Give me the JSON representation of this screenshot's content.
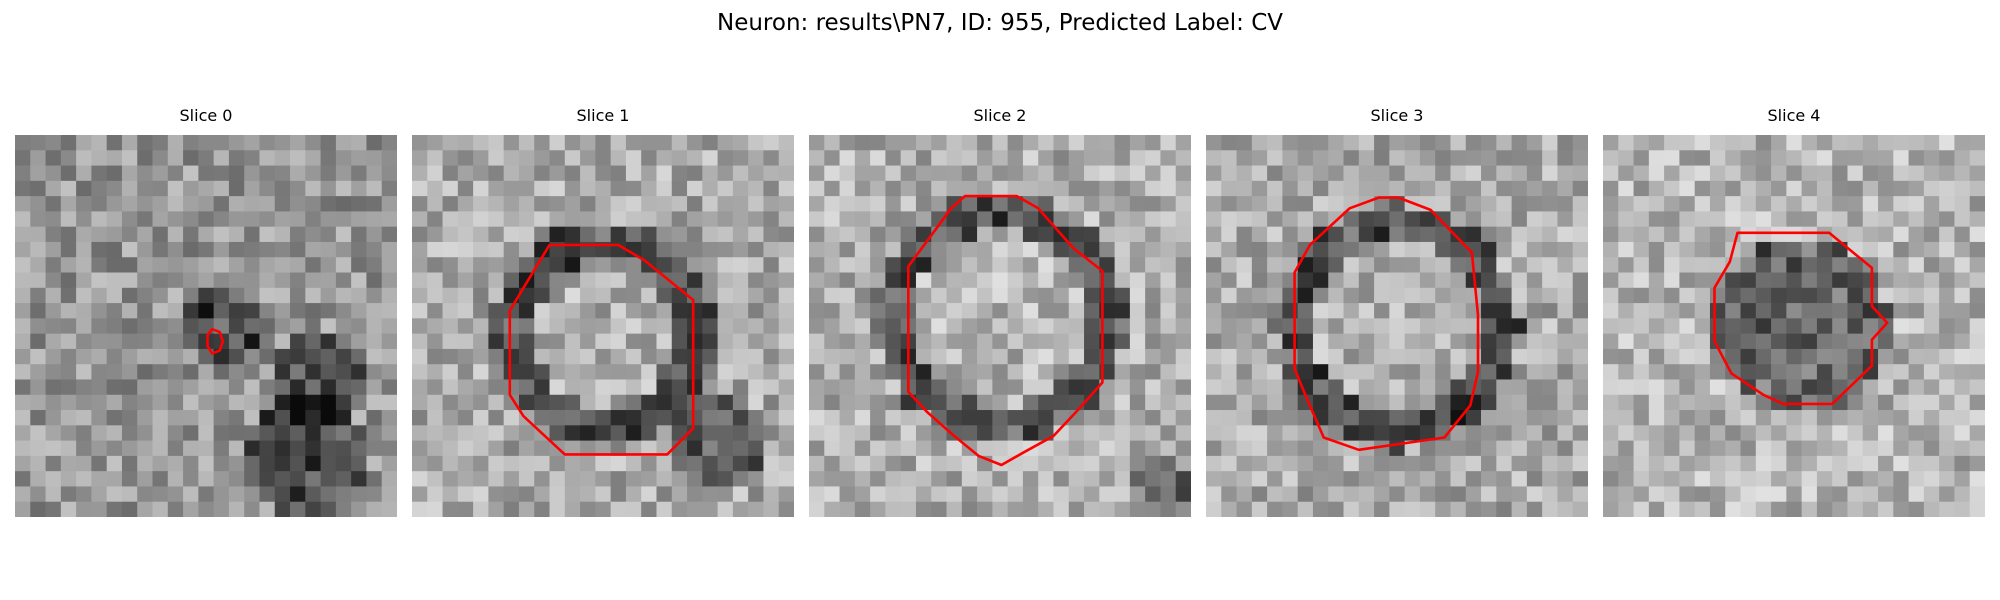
{
  "figure": {
    "title": "Neuron: results\\PN7, ID: 955, Predicted Label: CV"
  },
  "panels": [
    {
      "title": "Slice 0"
    },
    {
      "title": "Slice 1"
    },
    {
      "title": "Slice 2"
    },
    {
      "title": "Slice 3"
    },
    {
      "title": "Slice 4"
    }
  ],
  "colors": {
    "contour": "#ff0000",
    "background": "#ffffff"
  }
}
